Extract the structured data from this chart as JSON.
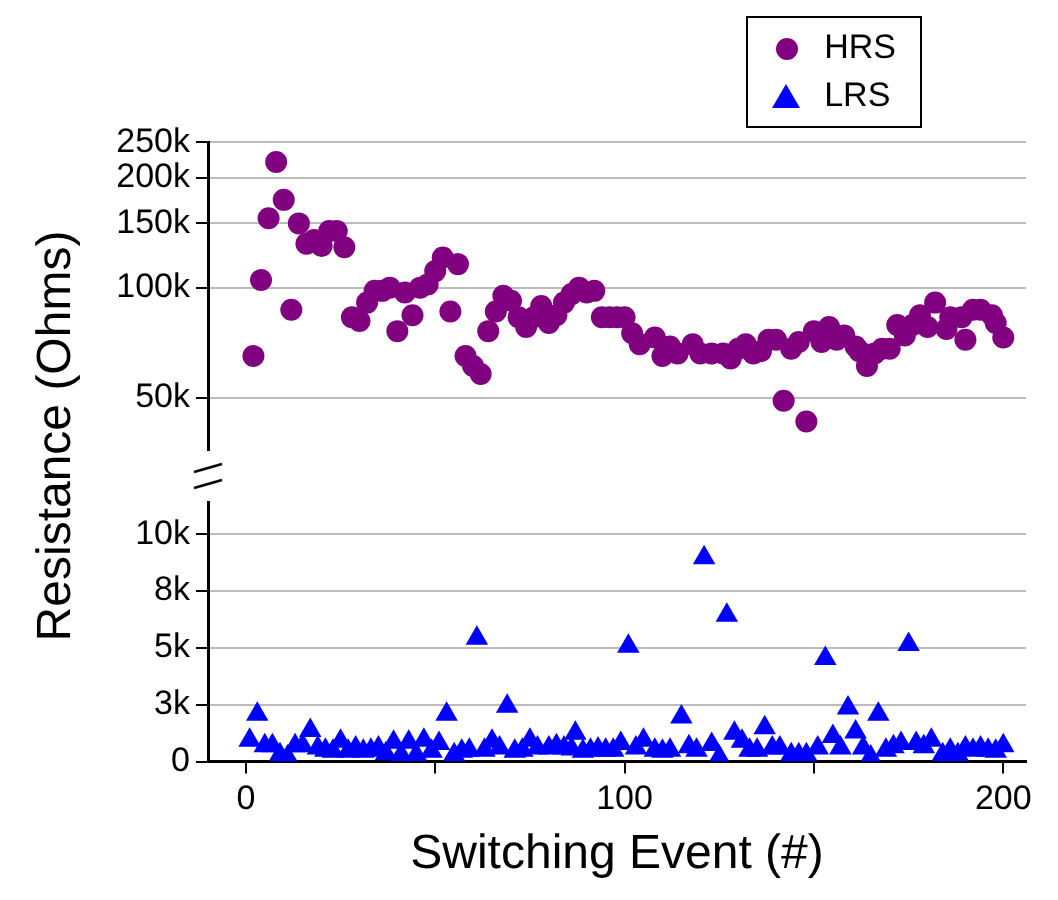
{
  "chart_data": [
    {
      "type": "scatter",
      "ylabel": "Resistance (Ohms)",
      "legend": "top right",
      "grid": "y",
      "log": "y",
      "tick_labels": "y",
      "xlim": [
        -10,
        206
      ],
      "ylim": [
        36000,
        250000
      ],
      "yticks": [
        {
          "value": 50000,
          "label": "50k"
        },
        {
          "value": 100000,
          "label": "100k"
        },
        {
          "value": 150000,
          "label": "150k"
        },
        {
          "value": 200000,
          "label": "200k"
        },
        {
          "value": 250000,
          "label": "250k"
        }
      ],
      "series": [
        {
          "name": "HRS",
          "color": "#800080",
          "marker": "circle",
          "x": [
            2,
            4,
            6,
            8,
            10,
            12,
            14,
            16,
            18,
            20,
            22,
            24,
            26,
            28,
            30,
            32,
            34,
            36,
            38,
            40,
            42,
            44,
            46,
            48,
            50,
            52,
            54,
            56,
            58,
            60,
            62,
            64,
            66,
            68,
            70,
            72,
            74,
            76,
            78,
            80,
            82,
            84,
            86,
            88,
            90,
            92,
            94,
            96,
            98,
            100,
            102,
            104,
            108,
            110,
            112,
            114,
            118,
            120,
            123,
            126,
            128,
            130,
            132,
            134,
            136,
            138,
            140,
            142,
            144,
            146,
            148,
            150,
            152,
            154,
            156,
            158,
            161,
            162,
            164,
            166,
            168,
            170,
            172,
            174,
            176,
            178,
            180,
            182,
            185,
            186,
            189,
            190,
            192,
            194,
            197,
            198,
            200
          ],
          "values": [
            65000,
            105000,
            155000,
            221000,
            174000,
            87000,
            150000,
            132000,
            135000,
            130000,
            143000,
            143000,
            129000,
            83000,
            81000,
            91000,
            98000,
            98000,
            100000,
            76000,
            97000,
            84000,
            100000,
            102000,
            111000,
            121000,
            86000,
            116000,
            65000,
            61000,
            58000,
            76000,
            86000,
            95000,
            92000,
            83000,
            78000,
            83000,
            89000,
            80000,
            84000,
            91000,
            96000,
            100000,
            97000,
            98000,
            83000,
            83000,
            83000,
            83000,
            75000,
            70000,
            73000,
            65000,
            69000,
            66000,
            70000,
            66000,
            66000,
            66000,
            64000,
            68000,
            70000,
            66000,
            67000,
            72000,
            72000,
            49000,
            68000,
            71000,
            43000,
            76000,
            71000,
            78000,
            72000,
            74000,
            69000,
            67000,
            61000,
            66000,
            68000,
            68000,
            79000,
            74000,
            79000,
            84000,
            78000,
            91000,
            77000,
            83000,
            83000,
            72000,
            87000,
            87000,
            84000,
            80000,
            73000
          ]
        }
      ]
    },
    {
      "type": "scatter",
      "xlabel": "Switching Event (#)",
      "grid": "y",
      "xlim": [
        -10,
        206
      ],
      "xticks": [
        0,
        {
          "value": 50,
          "label": null
        },
        100,
        {
          "value": 150,
          "label": null
        },
        200
      ],
      "ylim": [
        0,
        11400
      ],
      "yticks": [
        0,
        {
          "value": 2500,
          "label": "3k"
        },
        {
          "value": 5000,
          "label": "5k"
        },
        {
          "value": 7500,
          "label": "8k"
        },
        {
          "value": 10000,
          "label": "10k"
        }
      ],
      "series": [
        {
          "name": "LRS",
          "color": "#0000ff",
          "marker": "triangle",
          "x": [
            1,
            3,
            5,
            7,
            9,
            11,
            13,
            15,
            17,
            19,
            21,
            23,
            25,
            27,
            29,
            31,
            33,
            35,
            37,
            39,
            41,
            43,
            45,
            47,
            49,
            51,
            53,
            55,
            57,
            59,
            61,
            63,
            65,
            67,
            69,
            71,
            73,
            75,
            77,
            80,
            82,
            84,
            86,
            87,
            89,
            91,
            93,
            95,
            97,
            99,
            101,
            103,
            105,
            108,
            110,
            112,
            115,
            117,
            119,
            121,
            123,
            125,
            127,
            129,
            131,
            133,
            135,
            137,
            139,
            141,
            144,
            146,
            148,
            151,
            153,
            155,
            157,
            159,
            161,
            163,
            165,
            167,
            169,
            171,
            173,
            175,
            177,
            179,
            181,
            184,
            186,
            188,
            190,
            192,
            194,
            196,
            198,
            200
          ],
          "values": [
            940,
            2080,
            700,
            700,
            300,
            200,
            700,
            700,
            1370,
            600,
            500,
            450,
            900,
            450,
            600,
            450,
            500,
            600,
            350,
            850,
            300,
            850,
            300,
            940,
            450,
            800,
            2080,
            300,
            450,
            500,
            5430,
            500,
            900,
            600,
            2430,
            450,
            500,
            940,
            600,
            600,
            700,
            600,
            550,
            1250,
            450,
            500,
            550,
            500,
            500,
            800,
            5070,
            600,
            940,
            500,
            450,
            500,
            1960,
            650,
            500,
            8970,
            750,
            200,
            6440,
            1250,
            900,
            500,
            500,
            1490,
            600,
            600,
            300,
            300,
            300,
            600,
            4530,
            1100,
            600,
            2360,
            1300,
            600,
            200,
            2080,
            500,
            650,
            800,
            5150,
            800,
            650,
            940,
            300,
            500,
            300,
            600,
            500,
            600,
            500,
            450,
            700
          ]
        }
      ]
    }
  ]
}
